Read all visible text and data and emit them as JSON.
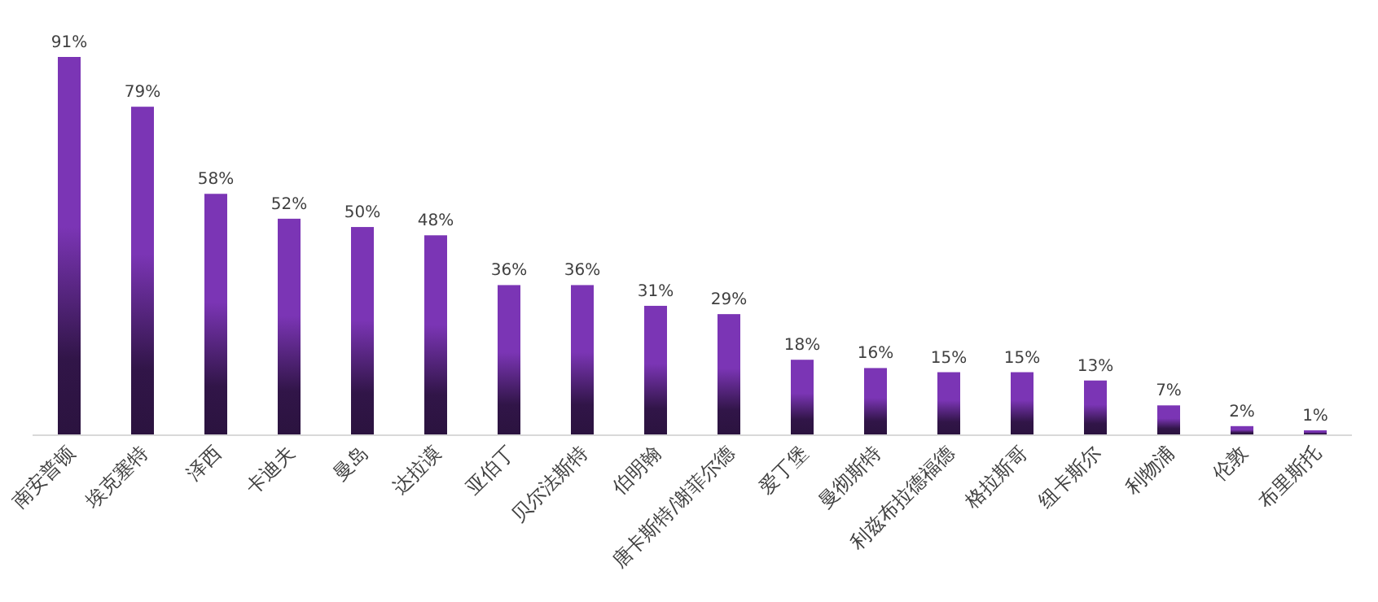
{
  "chart_data": {
    "type": "bar",
    "categories": [
      "南安普顿",
      "埃克塞特",
      "泽西",
      "卡迪夫",
      "曼岛",
      "达拉谟",
      "亚伯丁",
      "贝尔法斯特",
      "伯明翰",
      "唐卡斯特/谢菲尔德",
      "爱丁堡",
      "曼彻斯特",
      "利兹布拉德福德",
      "格拉斯哥",
      "纽卡斯尔",
      "利物浦",
      "伦敦",
      "布里斯托"
    ],
    "values": [
      91,
      79,
      58,
      52,
      50,
      48,
      36,
      36,
      31,
      29,
      18,
      16,
      15,
      15,
      13,
      7,
      2,
      1
    ],
    "value_labels": [
      "91%",
      "79%",
      "58%",
      "52%",
      "50%",
      "48%",
      "36%",
      "36%",
      "31%",
      "29%",
      "18%",
      "16%",
      "15%",
      "15%",
      "13%",
      "7%",
      "2%",
      "1%"
    ],
    "color": "#7b35b5"
  }
}
